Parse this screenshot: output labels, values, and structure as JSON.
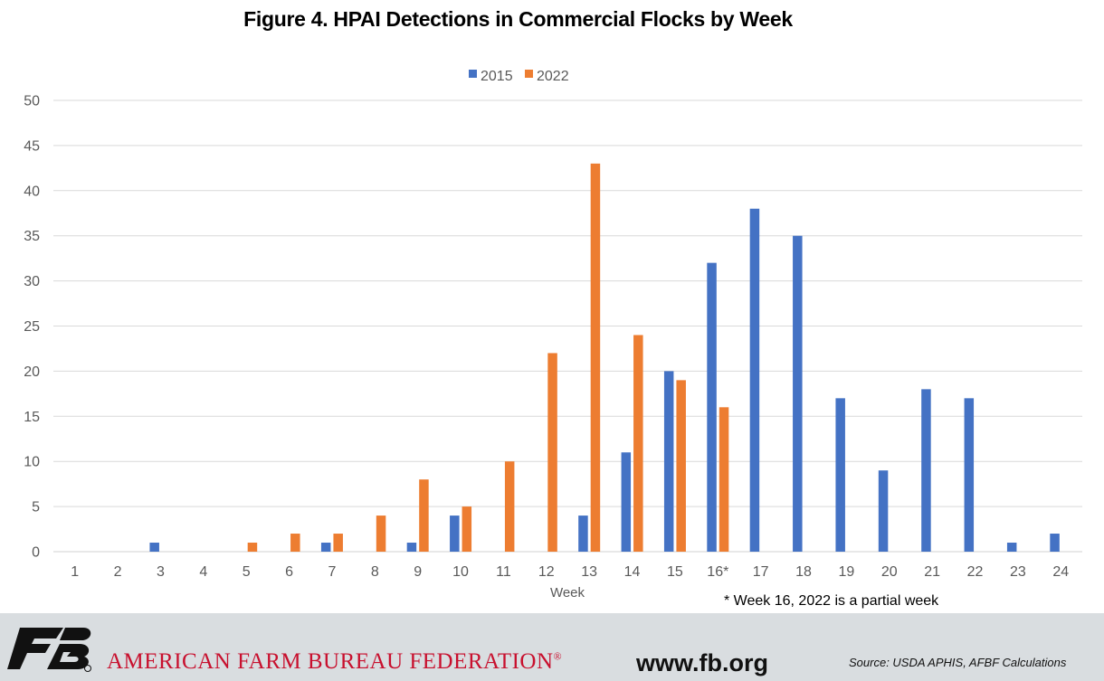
{
  "chart_data": {
    "type": "bar",
    "title": "Figure 4. HPAI Detections in Commercial Flocks by Week",
    "xlabel": "Week",
    "ylabel": "",
    "ylim": [
      0,
      50
    ],
    "y_ticks": [
      0,
      5,
      10,
      15,
      20,
      25,
      30,
      35,
      40,
      45,
      50
    ],
    "grid": "horizontal",
    "legend_position": "top-center",
    "categories": [
      "1",
      "2",
      "3",
      "4",
      "5",
      "6",
      "7",
      "8",
      "9",
      "10",
      "11",
      "12",
      "13",
      "14",
      "15",
      "16*",
      "17",
      "18",
      "19",
      "20",
      "21",
      "22",
      "23",
      "24"
    ],
    "series": [
      {
        "name": "2015",
        "color": "#4472c4",
        "values": [
          0,
          0,
          1,
          0,
          0,
          0,
          1,
          0,
          1,
          4,
          0,
          0,
          4,
          11,
          20,
          32,
          38,
          35,
          17,
          9,
          18,
          17,
          1,
          2
        ]
      },
      {
        "name": "2022",
        "color": "#ed7d31",
        "values": [
          0,
          0,
          0,
          0,
          1,
          2,
          2,
          4,
          8,
          5,
          10,
          22,
          43,
          24,
          19,
          16,
          0,
          0,
          0,
          0,
          0,
          0,
          0,
          0
        ]
      }
    ],
    "annotation": "* Week 16, 2022 is a partial week"
  },
  "footer": {
    "organization": "AMERICAN FARM BUREAU FEDERATION",
    "registered_mark": "®",
    "url": "www.fb.org",
    "source": "Source: USDA APHIS, AFBF Calculations",
    "logo_text": "FB",
    "logo_color": "#111111",
    "org_color": "#c8102e",
    "band_color": "#d9dde0"
  }
}
